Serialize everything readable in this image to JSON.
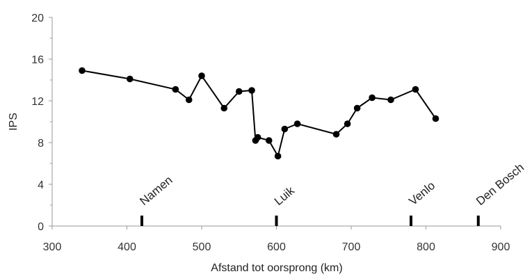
{
  "chart_data": {
    "type": "line",
    "title": "",
    "xlabel": "Afstand tot oorsprong (km)",
    "ylabel": "IPS",
    "xlim": [
      300,
      900
    ],
    "ylim": [
      0,
      20
    ],
    "xticks": [
      300,
      400,
      500,
      600,
      700,
      800,
      900
    ],
    "yticks": [
      0,
      4,
      8,
      12,
      16,
      20
    ],
    "grid": false,
    "legend": "none",
    "series": [
      {
        "points": [
          {
            "x": 340,
            "y": 14.9
          },
          {
            "x": 404,
            "y": 14.1
          },
          {
            "x": 465,
            "y": 13.1
          },
          {
            "x": 483,
            "y": 12.1
          },
          {
            "x": 500,
            "y": 14.4
          },
          {
            "x": 530,
            "y": 11.3
          },
          {
            "x": 550,
            "y": 12.9
          },
          {
            "x": 567,
            "y": 13.0
          },
          {
            "x": 572,
            "y": 8.2
          },
          {
            "x": 575,
            "y": 8.5
          },
          {
            "x": 590,
            "y": 8.2
          },
          {
            "x": 602,
            "y": 6.7
          },
          {
            "x": 611,
            "y": 9.3
          },
          {
            "x": 628,
            "y": 9.8
          },
          {
            "x": 680,
            "y": 8.8
          },
          {
            "x": 695,
            "y": 9.8
          },
          {
            "x": 708,
            "y": 11.3
          },
          {
            "x": 728,
            "y": 12.3
          },
          {
            "x": 753,
            "y": 12.1
          },
          {
            "x": 786,
            "y": 13.1
          },
          {
            "x": 813,
            "y": 10.3
          }
        ],
        "color": "#000000"
      }
    ],
    "annotations": [
      {
        "label": "Namen",
        "x": 420
      },
      {
        "label": "Luik",
        "x": 600
      },
      {
        "label": "Venlo",
        "x": 780
      },
      {
        "label": "Den Bosch",
        "x": 870
      }
    ]
  }
}
